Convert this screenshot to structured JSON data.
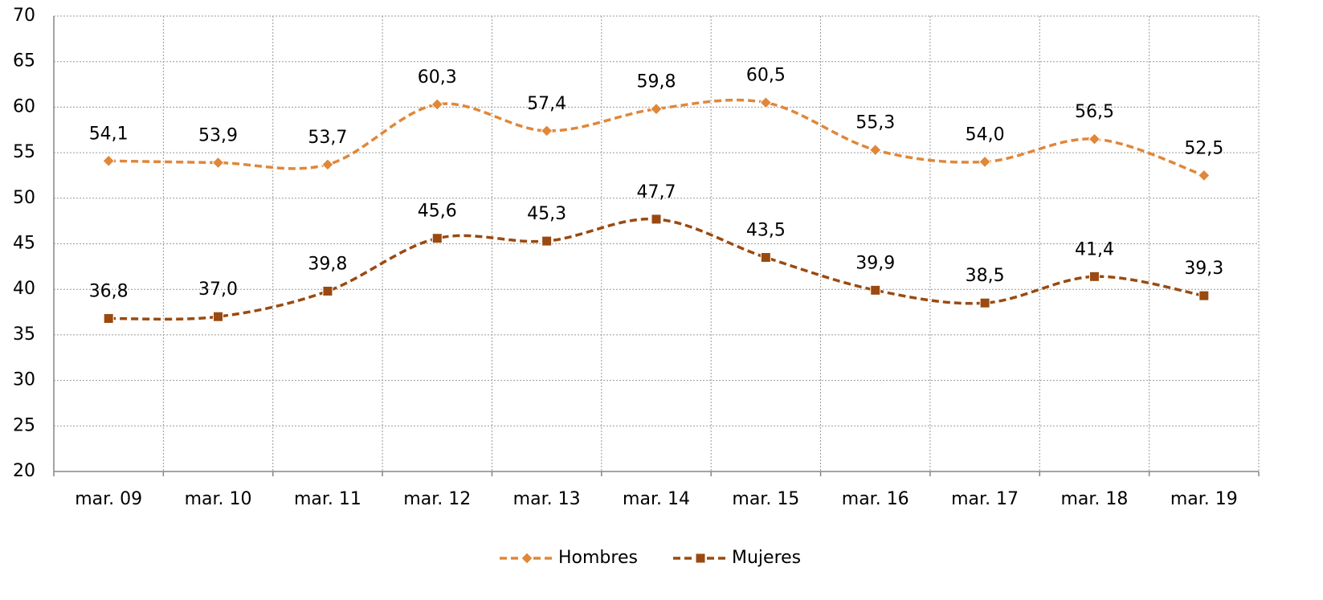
{
  "chart_data": {
    "type": "line",
    "categories": [
      "mar. 09",
      "mar. 10",
      "mar. 11",
      "mar. 12",
      "mar. 13",
      "mar. 14",
      "mar. 15",
      "mar. 16",
      "mar. 17",
      "mar. 18",
      "mar. 19"
    ],
    "series": [
      {
        "name": "Hombres",
        "color": "#e0873a",
        "marker": "diamond",
        "values": [
          54.1,
          53.9,
          53.7,
          60.3,
          57.4,
          59.8,
          60.5,
          55.3,
          54.0,
          56.5,
          52.5
        ],
        "value_labels": [
          "54,1",
          "53,9",
          "53,7",
          "60,3",
          "57,4",
          "59,8",
          "60,5",
          "55,3",
          "54,0",
          "56,5",
          "52,5"
        ]
      },
      {
        "name": "Mujeres",
        "color": "#9a4a10",
        "marker": "square",
        "values": [
          36.8,
          37.0,
          39.8,
          45.6,
          45.3,
          47.7,
          43.5,
          39.9,
          38.5,
          41.4,
          39.3
        ],
        "value_labels": [
          "36,8",
          "37,0",
          "39,8",
          "45,6",
          "45,3",
          "47,7",
          "43,5",
          "39,9",
          "38,5",
          "41,4",
          "39,3"
        ]
      }
    ],
    "ylim": [
      20,
      70
    ],
    "yticks": [
      20,
      25,
      30,
      35,
      40,
      45,
      50,
      55,
      60,
      65,
      70
    ],
    "grid": true,
    "smooth": true,
    "legend": "bottom"
  }
}
